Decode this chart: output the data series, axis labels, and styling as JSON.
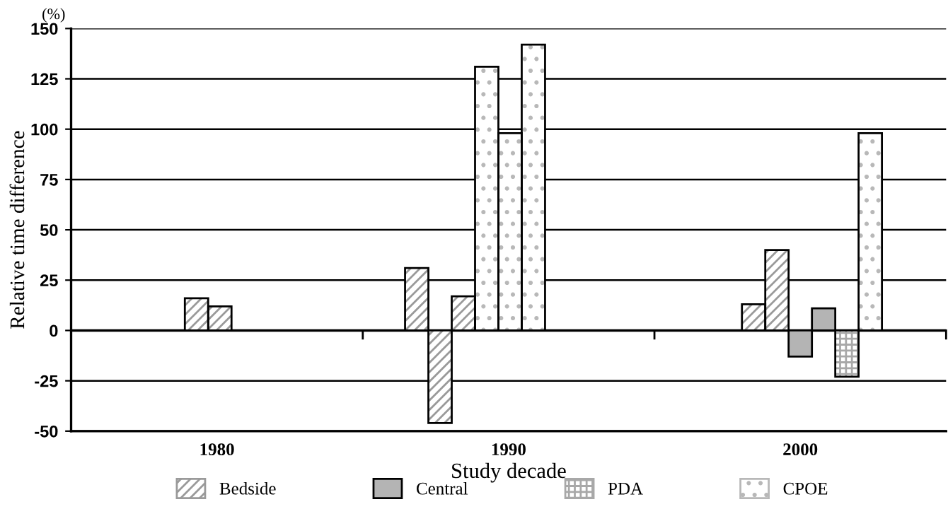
{
  "chart_data": {
    "type": "bar",
    "xlabel": "Study decade",
    "ylabel": "Relative time difference",
    "annotations": [
      "(%)"
    ],
    "series": [
      {
        "name": "Bedside",
        "color": "#9a9a9a",
        "x": [
          1979.3,
          1980.1,
          1986.85,
          1987.65,
          1988.45,
          1998.4,
          1999.2
        ],
        "values": [
          16,
          12,
          31,
          -46,
          17,
          13,
          40
        ]
      },
      {
        "name": "Central",
        "color": "#b4b4b4",
        "x": [
          2000.0,
          2000.8
        ],
        "values": [
          -13,
          11
        ]
      },
      {
        "name": "PDA",
        "color": "#a8a8a8",
        "x": [
          2001.6
        ],
        "values": [
          -23
        ]
      },
      {
        "name": "CPOE",
        "color": "#b8b8b8",
        "x": [
          1989.25,
          1990.05,
          1990.85,
          2002.4
        ],
        "values": [
          131,
          98,
          142,
          98
        ]
      }
    ],
    "xlim": [
      1975,
      2005
    ],
    "xticks": [
      {
        "value": 1975,
        "label": null
      },
      {
        "value": 1980,
        "label": "1980"
      },
      {
        "value": 1985,
        "label": null
      },
      {
        "value": 1990,
        "label": "1990"
      },
      {
        "value": 1995,
        "label": null
      },
      {
        "value": 2000,
        "label": "2000"
      },
      {
        "value": 2005,
        "label": null
      }
    ],
    "ylim": [
      -50,
      150
    ],
    "yticks": [
      -50,
      -25,
      0,
      25,
      50,
      75,
      100,
      125,
      150
    ],
    "grid": "y",
    "legend": "bottom"
  }
}
